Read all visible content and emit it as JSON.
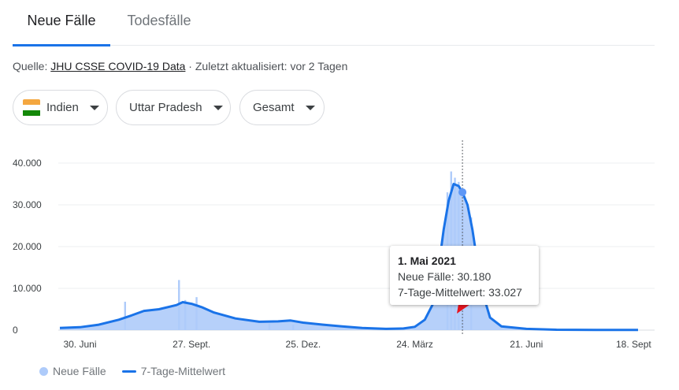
{
  "tabs": {
    "new_cases": "Neue Fälle",
    "deaths": "Todesfälle"
  },
  "source": {
    "prefix": "Quelle: ",
    "link": "JHU CSSE COVID-19 Data",
    "suffix": " · Zuletzt aktualisiert: vor 2 Tagen"
  },
  "filters": {
    "country": "Indien",
    "region": "Uttar Pradesh",
    "scope": "Gesamt"
  },
  "colors": {
    "bar": "#aecbfa",
    "line": "#1a73e8",
    "dot": "#5e97f6",
    "arrow": "#e8141e",
    "flag_saffron": "#f4a740",
    "flag_white": "#ffffff",
    "flag_green": "#138808"
  },
  "tooltip": {
    "date": "1. Mai 2021",
    "new_cases": "Neue Fälle: 30.180",
    "avg": "7-Tage-Mittelwert: 33.027"
  },
  "legend": {
    "bars": "Neue Fälle",
    "line": "7-Tage-Mittelwert"
  },
  "chart_data": {
    "type": "bar",
    "ylim": [
      0,
      40000
    ],
    "y_ticks": [
      {
        "value": 0,
        "label": "0"
      },
      {
        "value": 10000,
        "label": "10.000"
      },
      {
        "value": 20000,
        "label": "20.000"
      },
      {
        "value": 30000,
        "label": "30.000"
      },
      {
        "value": 40000,
        "label": "40.000"
      }
    ],
    "xlim": [
      "2020-06-14",
      "2021-09-18"
    ],
    "x_ticks": [
      {
        "date": "2020-06-30",
        "label": "30. Juni"
      },
      {
        "date": "2020-09-27",
        "label": "27. Sept."
      },
      {
        "date": "2020-12-25",
        "label": "25. Dez."
      },
      {
        "date": "2021-03-24",
        "label": "24. März"
      },
      {
        "date": "2021-06-21",
        "label": "21. Juni"
      },
      {
        "date": "2021-09-18",
        "label": "18. Sept"
      }
    ],
    "series": [
      {
        "name": "7-Tage-Mittelwert",
        "type": "line",
        "points": [
          [
            "2020-06-14",
            500
          ],
          [
            "2020-06-30",
            700
          ],
          [
            "2020-07-15",
            1300
          ],
          [
            "2020-07-31",
            2500
          ],
          [
            "2020-08-10",
            3500
          ],
          [
            "2020-08-20",
            4600
          ],
          [
            "2020-09-01",
            5000
          ],
          [
            "2020-09-15",
            6000
          ],
          [
            "2020-09-20",
            6700
          ],
          [
            "2020-09-27",
            6300
          ],
          [
            "2020-10-05",
            5500
          ],
          [
            "2020-10-15",
            4200
          ],
          [
            "2020-11-01",
            2800
          ],
          [
            "2020-11-20",
            2000
          ],
          [
            "2020-12-05",
            2100
          ],
          [
            "2020-12-15",
            2300
          ],
          [
            "2020-12-25",
            1800
          ],
          [
            "2021-01-10",
            1300
          ],
          [
            "2021-01-25",
            900
          ],
          [
            "2021-02-10",
            500
          ],
          [
            "2021-03-01",
            300
          ],
          [
            "2021-03-15",
            400
          ],
          [
            "2021-03-24",
            800
          ],
          [
            "2021-04-01",
            2500
          ],
          [
            "2021-04-07",
            6000
          ],
          [
            "2021-04-12",
            15000
          ],
          [
            "2021-04-16",
            24000
          ],
          [
            "2021-04-20",
            31000
          ],
          [
            "2021-04-24",
            35000
          ],
          [
            "2021-04-28",
            34500
          ],
          [
            "2021-05-01",
            33027
          ],
          [
            "2021-05-05",
            30000
          ],
          [
            "2021-05-09",
            24000
          ],
          [
            "2021-05-13",
            16000
          ],
          [
            "2021-05-18",
            8000
          ],
          [
            "2021-05-23",
            3000
          ],
          [
            "2021-06-01",
            900
          ],
          [
            "2021-06-21",
            300
          ],
          [
            "2021-07-15",
            100
          ],
          [
            "2021-08-15",
            50
          ],
          [
            "2021-09-18",
            30
          ]
        ]
      },
      {
        "name": "Neue Fälle",
        "type": "bar",
        "spikes": [
          [
            "2020-08-05",
            6800
          ],
          [
            "2020-09-17",
            12000
          ],
          [
            "2020-09-22",
            7200
          ],
          [
            "2020-10-01",
            7900
          ],
          [
            "2020-11-28",
            1600
          ],
          [
            "2020-12-17",
            1300
          ],
          [
            "2021-04-22",
            38000
          ],
          [
            "2021-04-25",
            36500
          ],
          [
            "2021-04-19",
            33000
          ],
          [
            "2021-04-28",
            35500
          ],
          [
            "2021-05-01",
            30180
          ],
          [
            "2021-05-08",
            27000
          ]
        ]
      }
    ],
    "highlight": {
      "date": "2021-05-01",
      "value": 33027
    }
  }
}
